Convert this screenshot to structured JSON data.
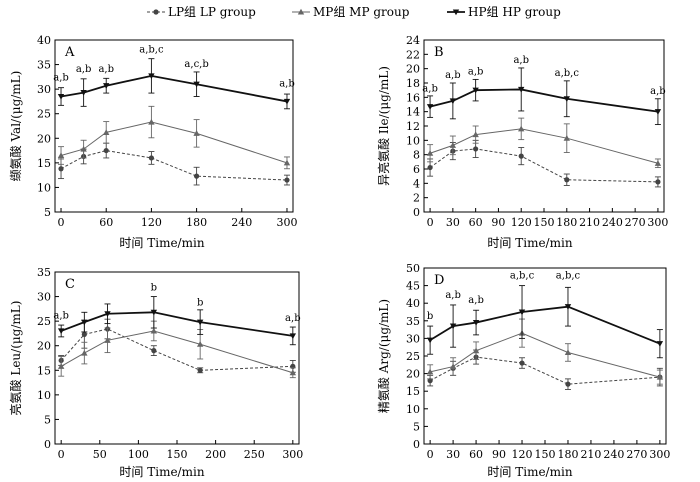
{
  "legend": [
    {
      "label": "LP组 LP group",
      "style": "lp"
    },
    {
      "label": "MP组 MP group",
      "style": "mp"
    },
    {
      "label": "HP组 HP group",
      "style": "hp"
    }
  ],
  "styles": {
    "lp": {
      "color": "#444444",
      "dash": "3,2",
      "width": 1,
      "marker": "circle"
    },
    "mp": {
      "color": "#666666",
      "dash": "",
      "width": 1,
      "marker": "triangle"
    },
    "hp": {
      "color": "#111111",
      "dash": "",
      "width": 1.8,
      "marker": "triangle-down"
    }
  },
  "chart_data": [
    {
      "type": "line",
      "panel": "A",
      "ylabel": "缬氨酸 Val/(μg/mL)",
      "xlabel": "时间 Time/min",
      "x": [
        0,
        30,
        60,
        120,
        180,
        300
      ],
      "xticks": [
        0,
        60,
        120,
        180,
        240,
        300
      ],
      "yticks": [
        5,
        10,
        15,
        20,
        25,
        30,
        35,
        40
      ],
      "xlim": [
        -8,
        308
      ],
      "ylim": [
        5,
        40
      ],
      "series": [
        {
          "key": "lp",
          "values": [
            13.8,
            16.3,
            17.5,
            16.0,
            12.3,
            11.5
          ],
          "err": [
            2.0,
            1.5,
            1.5,
            1.3,
            1.8,
            1.0
          ]
        },
        {
          "key": "mp",
          "values": [
            16.5,
            17.8,
            21.2,
            23.3,
            21.0,
            15.0
          ],
          "err": [
            1.8,
            1.8,
            2.2,
            3.2,
            2.8,
            1.2
          ]
        },
        {
          "key": "hp",
          "values": [
            28.5,
            29.3,
            30.7,
            32.7,
            31.0,
            27.5
          ],
          "err": [
            1.8,
            2.8,
            1.5,
            3.5,
            2.5,
            1.5
          ]
        }
      ],
      "annotations": [
        {
          "x": 0,
          "text": "a,b",
          "y": 31.8
        },
        {
          "x": 30,
          "text": "a,b",
          "y": 33.5
        },
        {
          "x": 60,
          "text": "a,b",
          "y": 33.5
        },
        {
          "x": 120,
          "text": "a,b,c",
          "y": 37.5
        },
        {
          "x": 180,
          "text": "a,c,b",
          "y": 34.5
        },
        {
          "x": 300,
          "text": "a,b",
          "y": 30.5
        }
      ]
    },
    {
      "type": "line",
      "panel": "B",
      "ylabel": "异亮氨酸 Ile/(μg/mL)",
      "xlabel": "时间 Time/min",
      "x": [
        0,
        30,
        60,
        120,
        180,
        300
      ],
      "xticks": [
        0,
        30,
        60,
        90,
        120,
        150,
        180,
        210,
        240,
        270,
        300
      ],
      "yticks": [
        0,
        2,
        4,
        6,
        8,
        10,
        12,
        14,
        16,
        18,
        20,
        22,
        24
      ],
      "xlim": [
        -8,
        308
      ],
      "ylim": [
        0,
        24
      ],
      "series": [
        {
          "key": "lp",
          "values": [
            6.2,
            8.5,
            8.8,
            7.8,
            4.5,
            4.2
          ],
          "err": [
            1.2,
            1.2,
            1.2,
            1.2,
            0.8,
            0.7
          ]
        },
        {
          "key": "mp",
          "values": [
            8.2,
            9.3,
            10.8,
            11.6,
            10.3,
            6.8
          ],
          "err": [
            1.2,
            1.3,
            1.2,
            1.5,
            2.0,
            0.6
          ]
        },
        {
          "key": "hp",
          "values": [
            14.7,
            15.5,
            17.0,
            17.1,
            15.8,
            14.0
          ],
          "err": [
            1.5,
            2.5,
            1.5,
            3.0,
            2.5,
            1.8
          ]
        }
      ],
      "annotations": [
        {
          "x": 0,
          "text": "a,b",
          "y": 16.8
        },
        {
          "x": 30,
          "text": "a,b",
          "y": 18.7
        },
        {
          "x": 60,
          "text": "a,b",
          "y": 19.2
        },
        {
          "x": 120,
          "text": "a,b",
          "y": 20.8
        },
        {
          "x": 180,
          "text": "a,b,c",
          "y": 19.0
        },
        {
          "x": 300,
          "text": "a,b",
          "y": 16.5
        }
      ]
    },
    {
      "type": "line",
      "panel": "C",
      "ylabel": "亮氨酸 Leu/(μg/mL)",
      "xlabel": "时间 Time/min",
      "x": [
        0,
        30,
        60,
        120,
        180,
        300
      ],
      "xticks": [
        0,
        50,
        100,
        150,
        200,
        250,
        300
      ],
      "yticks": [
        0,
        5,
        10,
        15,
        20,
        25,
        30,
        35
      ],
      "xlim": [
        -8,
        308
      ],
      "ylim": [
        0,
        35
      ],
      "series": [
        {
          "key": "lp",
          "values": [
            17.0,
            22.3,
            23.4,
            19.0,
            15.0,
            15.8
          ],
          "err": [
            1.0,
            2.8,
            2.0,
            1.0,
            0.5,
            1.2
          ]
        },
        {
          "key": "mp",
          "values": [
            15.8,
            18.5,
            21.1,
            23.0,
            20.3,
            14.5
          ],
          "err": [
            2.0,
            2.2,
            2.5,
            2.0,
            3.0,
            1.0
          ]
        },
        {
          "key": "hp",
          "values": [
            23.0,
            24.8,
            26.5,
            26.8,
            24.8,
            22.0
          ],
          "err": [
            1.2,
            2.0,
            2.0,
            3.2,
            2.5,
            1.8
          ]
        }
      ],
      "annotations": [
        {
          "x": 0,
          "text": "a,b",
          "y": 25.5
        },
        {
          "x": 120,
          "text": "b",
          "y": 31.2
        },
        {
          "x": 180,
          "text": "b",
          "y": 28.2
        },
        {
          "x": 300,
          "text": "a,b",
          "y": 25.0
        }
      ]
    },
    {
      "type": "line",
      "panel": "D",
      "ylabel": "精氨酸 Arg/(μg/mL)",
      "xlabel": "时间 Time/min",
      "x": [
        0,
        30,
        60,
        120,
        180,
        300
      ],
      "xticks": [
        0,
        30,
        60,
        90,
        120,
        150,
        180,
        210,
        240,
        270,
        300
      ],
      "yticks": [
        0,
        5,
        10,
        15,
        20,
        25,
        30,
        35,
        40,
        45,
        50
      ],
      "xlim": [
        -8,
        308
      ],
      "ylim": [
        0,
        50
      ],
      "series": [
        {
          "key": "lp",
          "values": [
            18.0,
            21.5,
            24.7,
            23.0,
            17.0,
            19.0
          ],
          "err": [
            1.5,
            2.0,
            2.0,
            1.5,
            1.5,
            2.5
          ]
        },
        {
          "key": "mp",
          "values": [
            20.5,
            22.0,
            26.5,
            31.5,
            26.0,
            19.0
          ],
          "err": [
            2.0,
            2.5,
            2.5,
            4.0,
            2.5,
            2.0
          ]
        },
        {
          "key": "hp",
          "values": [
            29.5,
            33.5,
            34.5,
            37.5,
            39.0,
            28.5
          ],
          "err": [
            4.0,
            6.0,
            3.5,
            7.5,
            5.5,
            4.0
          ]
        }
      ],
      "annotations": [
        {
          "x": 0,
          "text": "b",
          "y": 35.5
        },
        {
          "x": 30,
          "text": "a,b",
          "y": 41.5
        },
        {
          "x": 60,
          "text": "a,b",
          "y": 40.0
        },
        {
          "x": 120,
          "text": "a,b,c",
          "y": 47.0
        },
        {
          "x": 180,
          "text": "a,b,c",
          "y": 47.0
        }
      ]
    }
  ]
}
